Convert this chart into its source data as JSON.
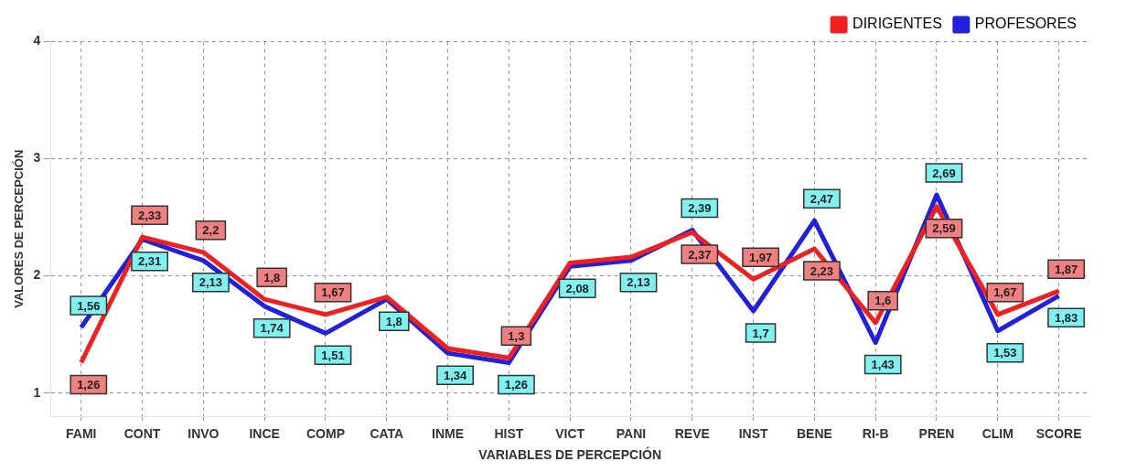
{
  "chart_data": {
    "type": "line",
    "xlabel": "VARIABLES DE PERCEPCIÓN",
    "ylabel": "VALORES DE PERCEPCIÓN",
    "categories": [
      "FAMI",
      "CONT",
      "INVO",
      "INCE",
      "COMP",
      "CATA",
      "INME",
      "HIST",
      "VICT",
      "PANI",
      "REVE",
      "INST",
      "BENE",
      "RI-B",
      "PREN",
      "CLIM",
      "SCORE"
    ],
    "ylim": [
      0.8,
      4
    ],
    "yticks": [
      1,
      2,
      3,
      4
    ],
    "grid": true,
    "legend": "top right",
    "marker": "none",
    "line_style": "solid",
    "series": [
      {
        "name": "DIRIGENTES",
        "color": "#ee2020",
        "values": [
          1.26,
          2.33,
          2.2,
          1.8,
          1.67,
          1.82,
          1.38,
          1.3,
          2.11,
          2.16,
          2.37,
          1.97,
          2.23,
          1.6,
          2.59,
          1.67,
          1.87
        ],
        "value_labels": [
          "1,26",
          "2,33",
          "2,2",
          "1,8",
          "1,67",
          null,
          null,
          "1,3",
          null,
          null,
          "2,37",
          "1,97",
          "2,23",
          "1,6",
          "2,59",
          "1,67",
          "1,87"
        ]
      },
      {
        "name": "PROFESORES",
        "color": "#2020dd",
        "values": [
          1.56,
          2.31,
          2.13,
          1.74,
          1.51,
          1.8,
          1.34,
          1.26,
          2.08,
          2.13,
          2.39,
          1.7,
          2.47,
          1.43,
          2.69,
          1.53,
          1.83
        ],
        "value_labels": [
          "1,56",
          "2,31",
          "2,13",
          "1,74",
          "1,51",
          "1,8",
          "1,34",
          "1,26",
          "2,08",
          "2,13",
          "2,39",
          "1,7",
          "2,47",
          "1,43",
          "2,69",
          "1,53",
          "1,83"
        ]
      }
    ]
  }
}
